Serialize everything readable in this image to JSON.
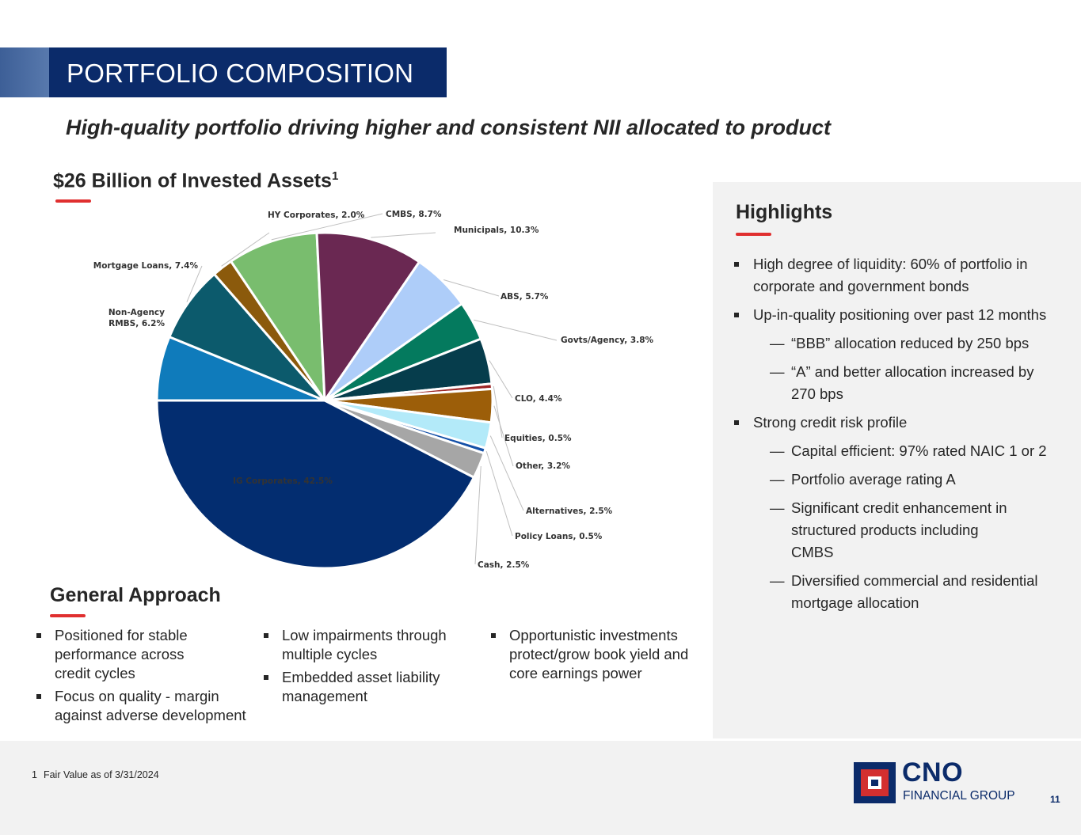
{
  "header": {
    "title": "PORTFOLIO COMPOSITION",
    "subtitle": "High-quality portfolio driving higher and consistent NII allocated to product"
  },
  "assets": {
    "heading": "$26 Billion of Invested Assets",
    "footnote_ref": "1"
  },
  "chart_data": {
    "type": "pie",
    "title": "$26 Billion of Invested Assets",
    "unit": "%",
    "start_at": "9 o'clock, clockwise",
    "slices": [
      {
        "name": "Non-Agency RMBS",
        "label_lines": [
          "Non-Agency",
          "RMBS, 6.2%"
        ],
        "value": 6.2,
        "color": "#0f7bbb"
      },
      {
        "name": "Mortgage Loans",
        "label_lines": [
          "Mortgage Loans, 7.4%"
        ],
        "value": 7.4,
        "color": "#0c5a6c"
      },
      {
        "name": "HY Corporates",
        "label_lines": [
          "HY Corporates, 2.0%"
        ],
        "value": 2.0,
        "color": "#8b5a0c"
      },
      {
        "name": "CMBS",
        "label_lines": [
          "CMBS, 8.7%"
        ],
        "value": 8.7,
        "color": "#79bd6e"
      },
      {
        "name": "Municipals",
        "label_lines": [
          "Municipals, 10.3%"
        ],
        "value": 10.3,
        "color": "#6a2852"
      },
      {
        "name": "ABS",
        "label_lines": [
          "ABS, 5.7%"
        ],
        "value": 5.7,
        "color": "#aecdf9"
      },
      {
        "name": "Govts/Agency",
        "label_lines": [
          "Govts/Agency, 3.8%"
        ],
        "value": 3.8,
        "color": "#047a5e"
      },
      {
        "name": "CLO",
        "label_lines": [
          "CLO, 4.4%"
        ],
        "value": 4.4,
        "color": "#063d4c"
      },
      {
        "name": "Equities",
        "label_lines": [
          "Equities, 0.5%"
        ],
        "value": 0.5,
        "color": "#9c2424"
      },
      {
        "name": "Other",
        "label_lines": [
          "Other, 3.2%"
        ],
        "value": 3.2,
        "color": "#9c5e09"
      },
      {
        "name": "Alternatives",
        "label_lines": [
          "Alternatives, 2.5%"
        ],
        "value": 2.5,
        "color": "#b3eaf9"
      },
      {
        "name": "Policy Loans",
        "label_lines": [
          "Policy Loans, 0.5%"
        ],
        "value": 0.5,
        "color": "#1450a8"
      },
      {
        "name": "Cash",
        "label_lines": [
          "Cash, 2.5%"
        ],
        "value": 2.5,
        "color": "#a6a6a6"
      },
      {
        "name": "IG Corporates",
        "label_lines": [
          "IG Corporates, 42.5%"
        ],
        "value": 42.5,
        "color": "#032d70"
      }
    ]
  },
  "approach": {
    "heading": "General Approach",
    "columns": [
      [
        "Positioned for stable performance across credit cycles",
        "Focus on quality - margin against adverse development"
      ],
      [
        "Low impairments through multiple cycles",
        "Embedded asset liability management"
      ],
      [
        "Opportunistic investments protect/grow book yield and core earnings power"
      ]
    ]
  },
  "highlights": {
    "title": "Highlights",
    "bullets": [
      "High degree of liquidity: 60% of portfolio in corporate and government bonds",
      "Up-in-quality positioning over past 12 months",
      "“BBB” allocation reduced by 250 bps",
      "“A” and better allocation increased by 270 bps",
      "Strong credit risk profile",
      "Capital efficient: 97% rated NAIC 1 or 2",
      "Portfolio average rating A",
      "Significant credit enhancement in structured products including CMBS",
      "Diversified commercial and residential mortgage allocation"
    ]
  },
  "footer": {
    "footnote_num": "1",
    "footnote_text": "Fair Value as of 3/31/2024",
    "logo_name": "CNO",
    "logo_tagline": "FINANCIAL GROUP",
    "page_number": "11"
  },
  "colors": {
    "navy": "#0b2b6a",
    "accent_red": "#e02f2f",
    "panel_gray": "#f2f2f2"
  }
}
